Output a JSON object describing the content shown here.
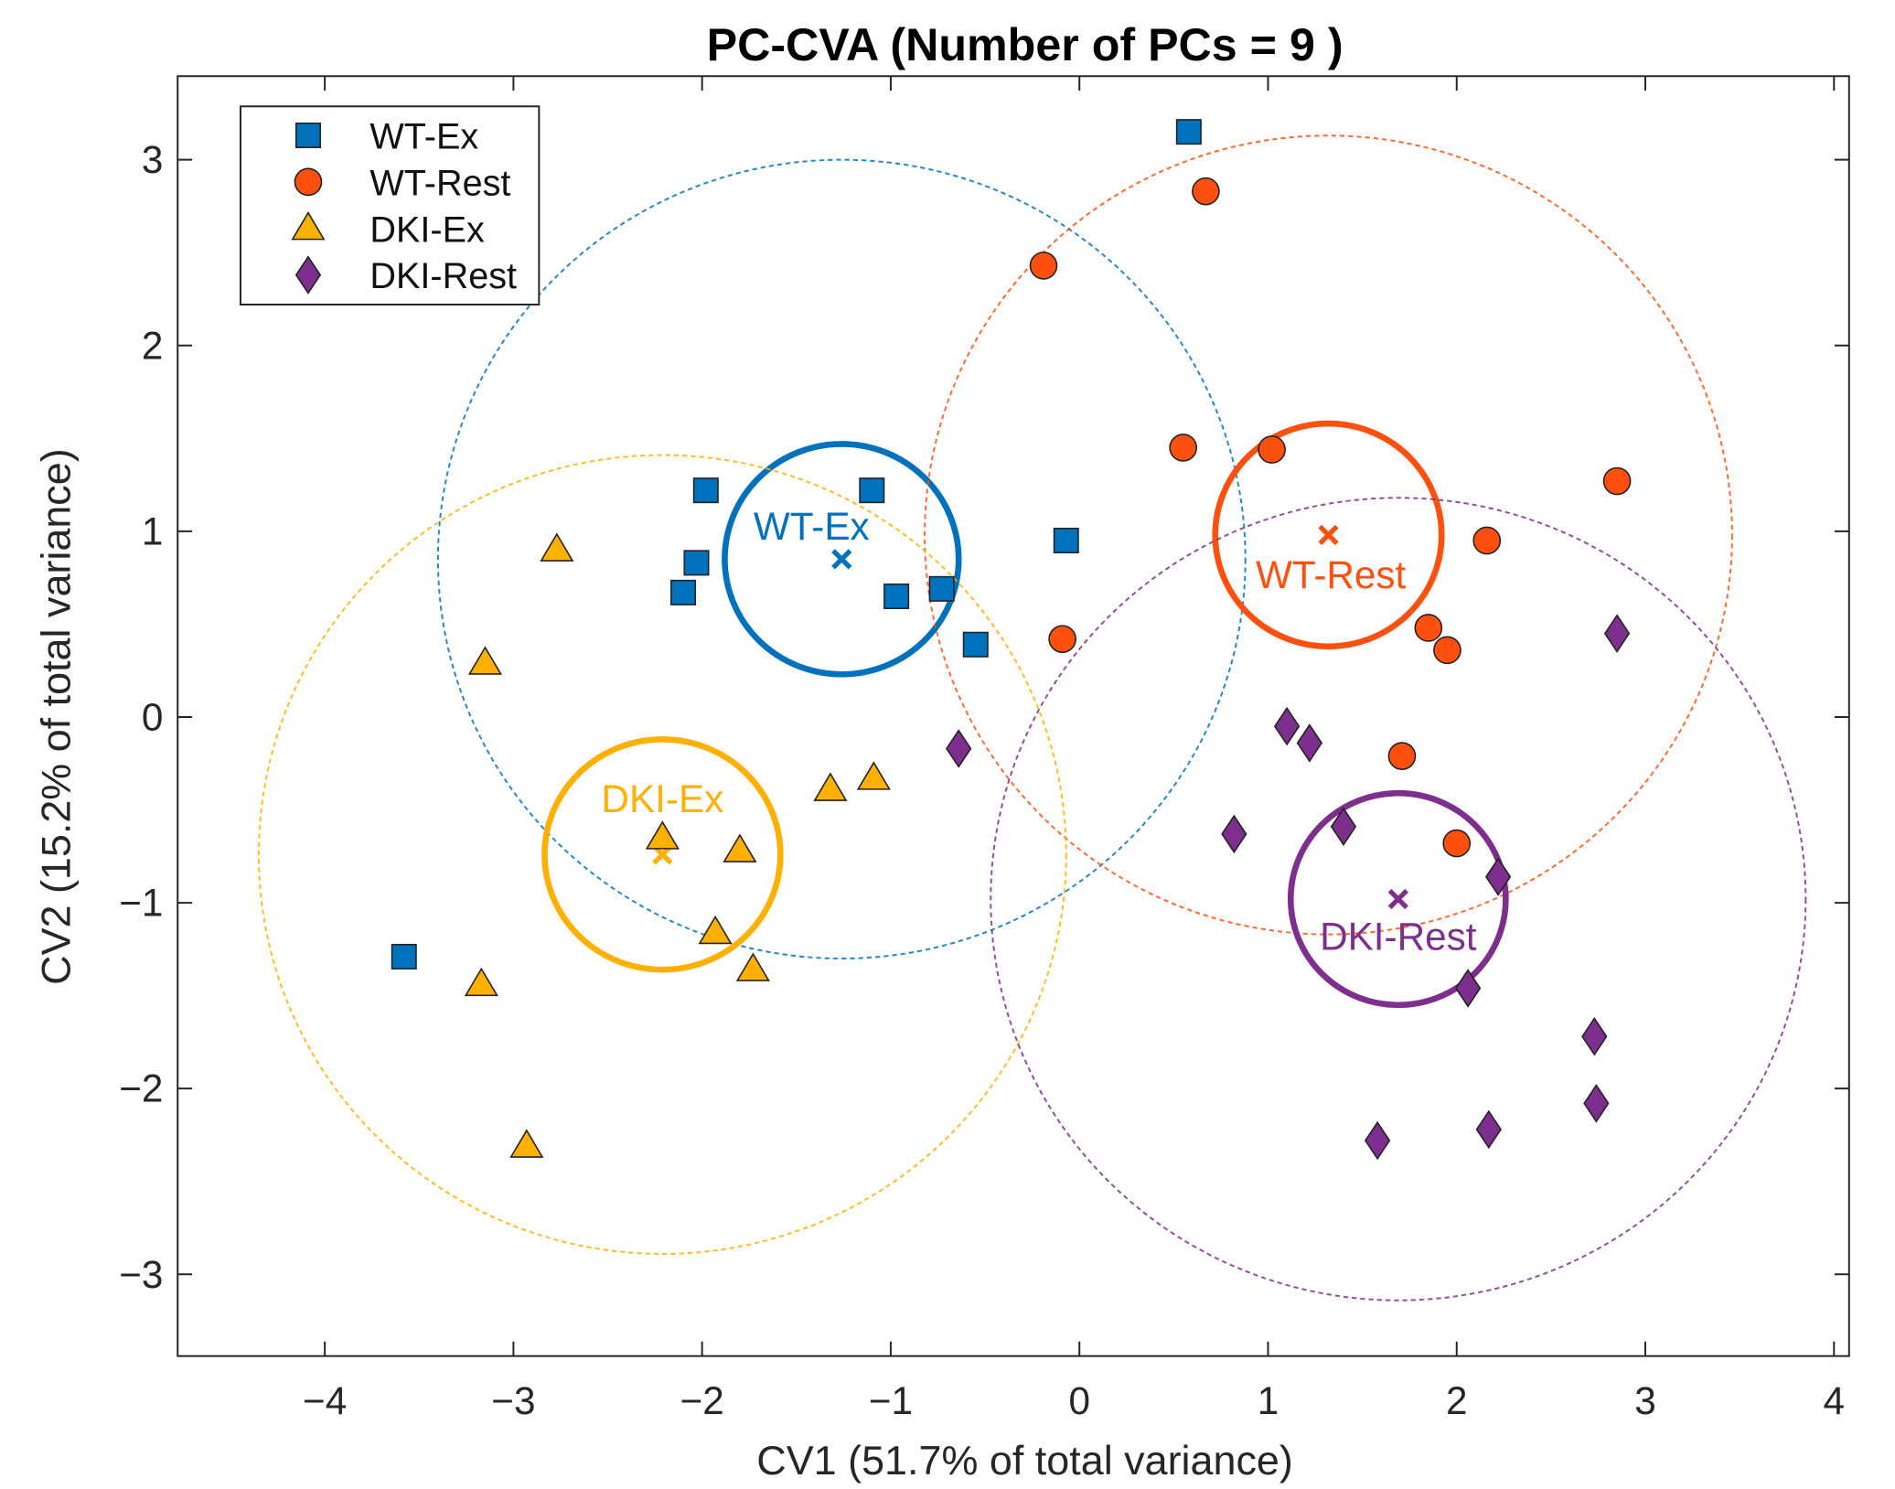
{
  "chart_data": {
    "type": "scatter",
    "title": "PC-CVA (Number of PCs = 9 )",
    "xlabel": "CV1 (51.7% of total variance)",
    "ylabel": "CV2 (15.2% of total variance)",
    "xlim": [
      -4.78,
      4.08
    ],
    "ylim": [
      -3.44,
      3.45
    ],
    "xticks": [
      -4,
      -3,
      -2,
      -1,
      0,
      1,
      2,
      3,
      4
    ],
    "xtick_labels": [
      "−4",
      "−3",
      "−2",
      "−1",
      "0",
      "1",
      "2",
      "3",
      "4"
    ],
    "yticks": [
      3,
      2,
      1,
      0,
      -1,
      -2,
      -3
    ],
    "ytick_labels": [
      "3",
      "2",
      "1",
      "0",
      "−1",
      "−2",
      "−3"
    ],
    "grid": false,
    "legend_position": "top-left",
    "series": [
      {
        "name": "WT-Ex",
        "marker": "square",
        "color": "#0072BD",
        "x": [
          0.58,
          -1.98,
          -1.1,
          -2.03,
          -2.1,
          -0.97,
          -0.73,
          -0.07,
          -0.55,
          -3.58
        ],
        "y": [
          3.15,
          1.22,
          1.22,
          0.83,
          0.67,
          0.65,
          0.69,
          0.95,
          0.39,
          -1.29
        ],
        "centroid": [
          -1.26,
          0.85
        ],
        "inner_radius": [
          0.62,
          0.62
        ],
        "outer_radius": [
          2.14,
          2.15
        ]
      },
      {
        "name": "WT-Rest",
        "marker": "circle",
        "color": "#FF5010",
        "x": [
          0.67,
          -0.19,
          0.55,
          1.02,
          2.85,
          2.16,
          1.85,
          1.95,
          -0.09,
          1.71,
          2.0
        ],
        "y": [
          2.83,
          2.43,
          1.45,
          1.44,
          1.27,
          0.95,
          0.48,
          0.36,
          0.42,
          -0.21,
          -0.68
        ],
        "centroid": [
          1.32,
          0.98
        ],
        "inner_radius": [
          0.6,
          0.6
        ],
        "outer_radius": [
          2.14,
          2.15
        ]
      },
      {
        "name": "DKI-Ex",
        "marker": "triangle",
        "color": "#FFB000",
        "x": [
          -2.77,
          -3.15,
          -1.32,
          -1.09,
          -2.21,
          -1.8,
          -1.93,
          -1.73,
          -3.17,
          -2.93
        ],
        "y": [
          0.9,
          0.29,
          -0.39,
          -0.33,
          -0.65,
          -0.72,
          -1.16,
          -1.36,
          -1.44,
          -2.31
        ],
        "centroid": [
          -2.21,
          -0.74
        ],
        "inner_radius": [
          0.625,
          0.62
        ],
        "outer_radius": [
          2.14,
          2.15
        ]
      },
      {
        "name": "DKI-Rest",
        "marker": "diamond",
        "color": "#7E2F8E",
        "x": [
          2.85,
          1.1,
          1.22,
          -0.64,
          0.82,
          1.4,
          2.22,
          2.06,
          2.73,
          2.74,
          1.58,
          2.17
        ],
        "y": [
          0.45,
          -0.05,
          -0.14,
          -0.17,
          -0.63,
          -0.59,
          -0.86,
          -1.46,
          -1.72,
          -2.08,
          -2.28,
          -2.22
        ],
        "centroid": [
          1.69,
          -0.98
        ],
        "inner_radius": [
          0.57,
          0.57
        ],
        "outer_radius": [
          2.16,
          2.16
        ]
      }
    ]
  }
}
